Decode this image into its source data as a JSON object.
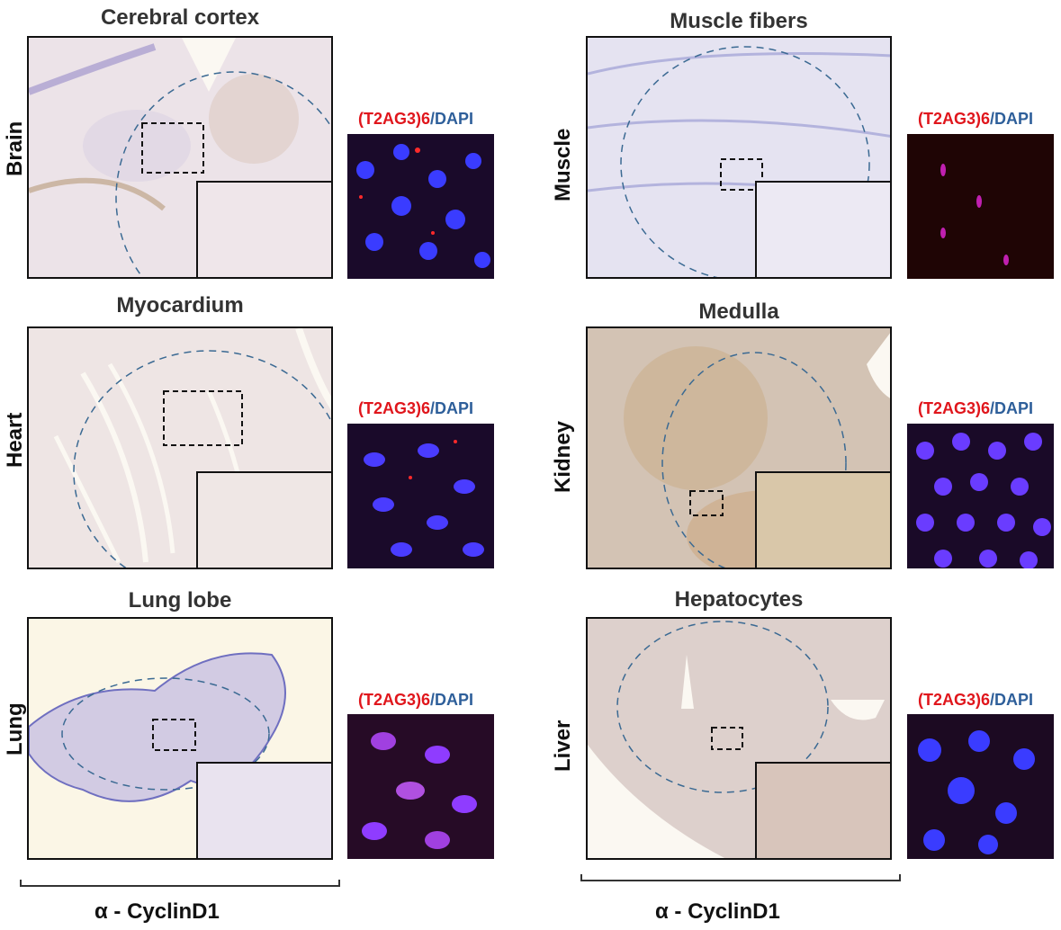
{
  "panels": [
    {
      "tissue": "Brain",
      "title": "Cerebral cortex",
      "fish_red": "(T2AG3)6",
      "fish_sep": "/",
      "fish_blue": "DAPI"
    },
    {
      "tissue": "Heart",
      "title": "Myocardium",
      "fish_red": "(T2AG3)6",
      "fish_sep": "/",
      "fish_blue": "DAPI"
    },
    {
      "tissue": "Lung",
      "title": "Lung lobe",
      "fish_red": "(T2AG3)6",
      "fish_sep": "/",
      "fish_blue": "DAPI"
    },
    {
      "tissue": "Muscle",
      "title": "Muscle fibers",
      "fish_red": "(T2AG3)6",
      "fish_sep": "/",
      "fish_blue": "DAPI"
    },
    {
      "tissue": "Kidney",
      "title": "Medulla",
      "fish_red": "(T2AG3)6",
      "fish_sep": "/",
      "fish_blue": "DAPI"
    },
    {
      "tissue": "Liver",
      "title": "Hepatocytes",
      "fish_red": "(T2AG3)6",
      "fish_sep": "/",
      "fish_blue": "DAPI"
    }
  ],
  "x_labels": {
    "left": "α - CyclinD1",
    "right": "α - CyclinD1"
  },
  "colors": {
    "tissue_bg": "#e9dfe6",
    "stain_brown": "#b0834c",
    "hematoxylin": "#6f6fc0",
    "dashed_circle": "#3b6a93",
    "fish_bg": "#1d0b2a",
    "nucleus": "#3a3cff",
    "telomere": "#ff2a2a"
  }
}
